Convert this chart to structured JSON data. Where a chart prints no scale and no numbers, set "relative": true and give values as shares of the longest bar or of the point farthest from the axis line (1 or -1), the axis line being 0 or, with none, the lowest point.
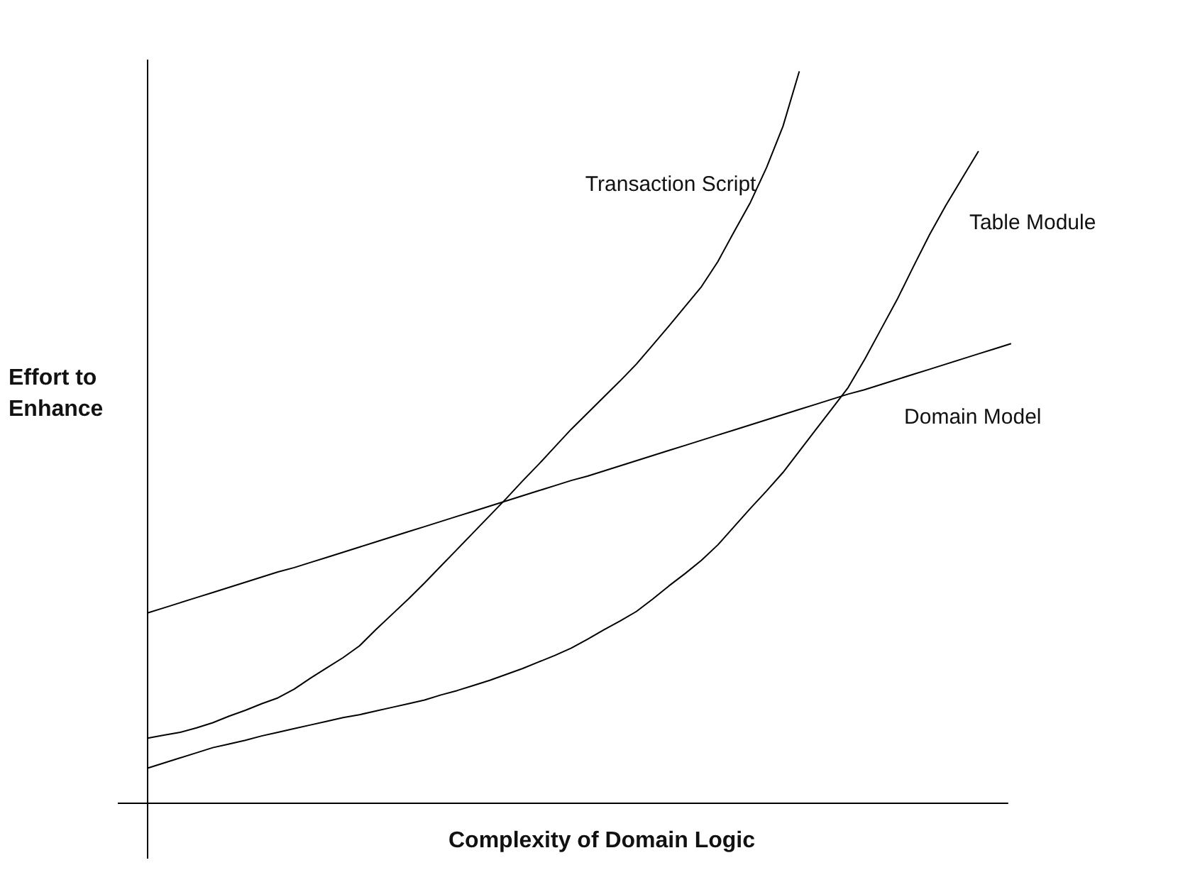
{
  "chart_data": {
    "type": "line",
    "relative": true,
    "xlabel": "Complexity of Domain Logic",
    "ylabel": "Effort to\nEnhance",
    "legend": false,
    "marker": "none",
    "line_style": "solid",
    "categories": [
      null,
      null,
      null,
      null,
      null,
      null,
      null,
      null,
      null,
      null,
      null,
      null,
      null,
      null,
      null,
      null,
      null,
      null,
      null,
      null,
      null,
      null,
      null,
      null,
      null,
      null,
      null,
      null,
      null,
      null,
      null,
      null,
      null,
      null,
      null,
      null,
      null,
      null,
      null,
      null,
      null,
      null,
      null,
      null,
      null,
      null,
      null,
      null,
      null,
      null,
      null,
      null,
      null,
      null
    ],
    "series": [
      {
        "name": "Transaction Script",
        "color": "#000000",
        "values": [
          0.089,
          0.093,
          0.097,
          0.103,
          0.11,
          0.119,
          0.127,
          0.136,
          0.144,
          0.156,
          0.171,
          0.185,
          0.199,
          0.215,
          0.237,
          0.258,
          0.279,
          0.301,
          0.324,
          0.347,
          0.37,
          0.393,
          0.416,
          0.44,
          0.463,
          0.487,
          0.511,
          0.533,
          0.555,
          0.577,
          0.6,
          0.626,
          0.652,
          0.679,
          0.706,
          0.74,
          0.781,
          0.821,
          0.869,
          0.925,
          1.0,
          null,
          null,
          null,
          null,
          null,
          null,
          null,
          null,
          null,
          null,
          null,
          null,
          null
        ]
      },
      {
        "name": "Table Module",
        "color": "#000000",
        "values": [
          0.048,
          0.055,
          0.062,
          0.069,
          0.076,
          0.081,
          0.086,
          0.092,
          0.097,
          0.102,
          0.107,
          0.112,
          0.117,
          0.121,
          0.126,
          0.131,
          0.136,
          0.141,
          0.148,
          0.154,
          0.161,
          0.168,
          0.176,
          0.184,
          0.193,
          0.202,
          0.212,
          0.224,
          0.237,
          0.249,
          0.262,
          0.279,
          0.297,
          0.314,
          0.332,
          0.353,
          0.378,
          0.403,
          0.427,
          0.452,
          0.481,
          0.51,
          0.539,
          0.568,
          0.606,
          0.647,
          0.688,
          0.733,
          0.777,
          0.817,
          0.854,
          0.891,
          null,
          null
        ]
      },
      {
        "name": "Domain Model",
        "color": "#000000",
        "values": [
          0.26,
          0.267,
          0.274,
          0.281,
          0.288,
          0.295,
          0.302,
          0.309,
          0.316,
          0.322,
          0.329,
          0.336,
          0.343,
          0.35,
          0.357,
          0.364,
          0.371,
          0.378,
          0.385,
          0.392,
          0.399,
          0.406,
          0.413,
          0.42,
          0.427,
          0.434,
          0.441,
          0.447,
          0.454,
          0.461,
          0.468,
          0.475,
          0.482,
          0.489,
          0.496,
          0.503,
          0.51,
          0.517,
          0.524,
          0.531,
          0.538,
          0.545,
          0.552,
          0.559,
          0.565,
          0.572,
          0.579,
          0.586,
          0.593,
          0.6,
          0.607,
          0.614,
          0.621,
          0.628
        ]
      }
    ]
  }
}
